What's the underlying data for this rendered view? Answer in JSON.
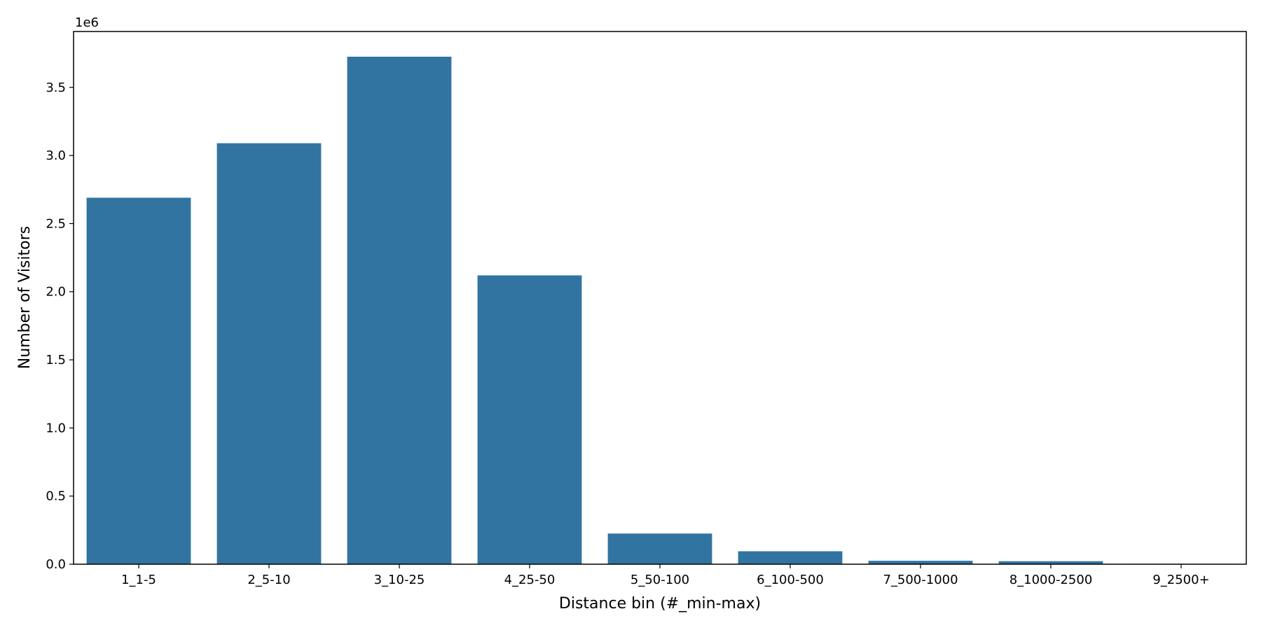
{
  "chart_data": {
    "type": "bar",
    "categories": [
      "1_1-5",
      "2_5-10",
      "3_10-25",
      "4_25-50",
      "5_50-100",
      "6_100-500",
      "7_500-1000",
      "8_1000-2500",
      "9_2500+"
    ],
    "values": [
      2690000,
      3090000,
      3725000,
      2120000,
      225000,
      95000,
      25000,
      22000,
      3000
    ],
    "xlabel": "Distance bin (#_min-max)",
    "ylabel": "Number of Visitors",
    "offset_text": "1e6",
    "y_scale": 1000000,
    "ylim": [
      0,
      3.91
    ],
    "yticks": [
      0.0,
      0.5,
      1.0,
      1.5,
      2.0,
      2.5,
      3.0,
      3.5
    ],
    "ytick_labels": [
      "0.0",
      "0.5",
      "1.0",
      "1.5",
      "2.0",
      "2.5",
      "3.0",
      "3.5"
    ],
    "bar_color": "#3274a1",
    "grid": false,
    "legend": "none"
  }
}
